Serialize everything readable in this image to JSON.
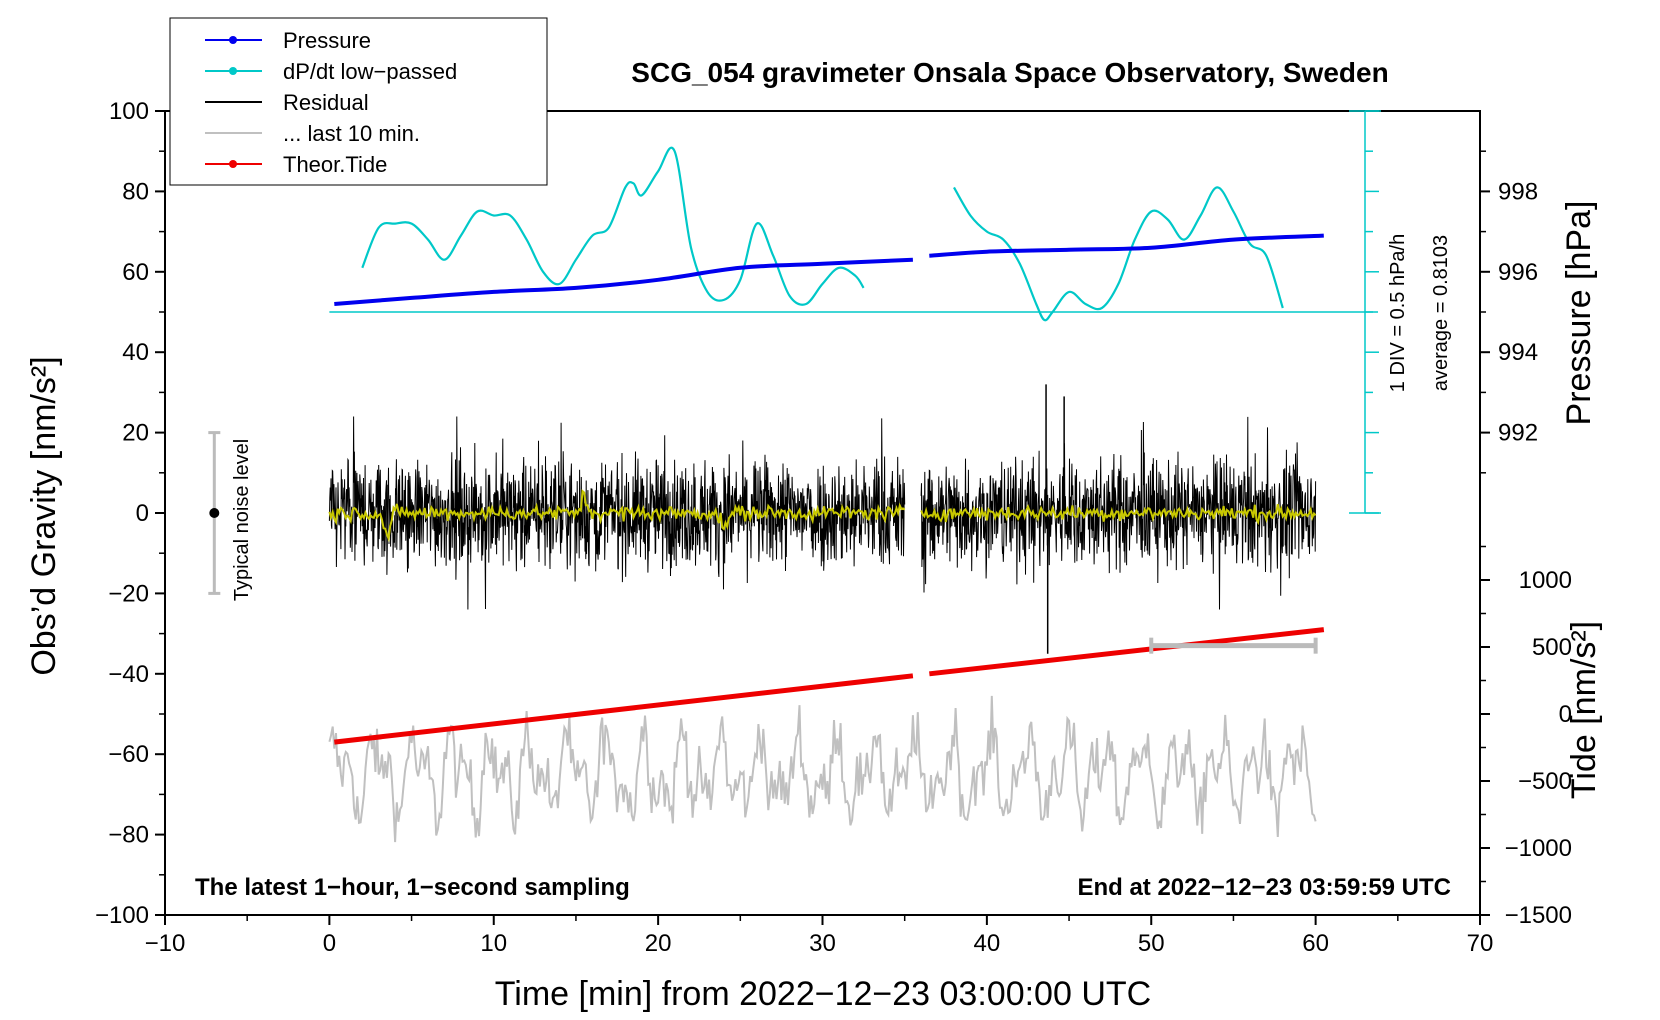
{
  "chart_data": {
    "type": "line",
    "title": "SCG_054 gravimeter Onsala Space Observatory, Sweden",
    "xlabel": "Time [min] from 2022−12−23 03:00:00 UTC",
    "ylabel_left": "Obs’d Gravity [nm/s²]",
    "ylabel_right_top": "Pressure [hPa]",
    "ylabel_right_bottom": "Tide [nm/s²]",
    "xlim": [
      -10,
      70
    ],
    "ylim": [
      -100,
      100
    ],
    "xticks": [
      -10,
      0,
      10,
      20,
      30,
      40,
      50,
      60,
      70
    ],
    "xtick_labels": [
      "−10",
      "0",
      "10",
      "20",
      "30",
      "40",
      "50",
      "60",
      "70"
    ],
    "yticks": [
      -100,
      -80,
      -60,
      -40,
      -20,
      0,
      20,
      40,
      60,
      80,
      100
    ],
    "ytick_labels": [
      "−100",
      "−80",
      "−60",
      "−40",
      "−20",
      "0",
      "20",
      "40",
      "60",
      "80",
      "100"
    ],
    "pressure_axis": {
      "ticks": [
        992,
        994,
        996,
        998
      ],
      "tick_labels": [
        "992",
        "994",
        "996",
        "998"
      ],
      "anchor": {
        "value": 995,
        "gravity": 50
      },
      "scale_gravity_per_hPa": 10
    },
    "tide_axis": {
      "ticks": [
        -1500,
        -1000,
        -500,
        0,
        500,
        1000
      ],
      "tick_labels": [
        "−1500",
        "−1000",
        "−500",
        "0",
        "500",
        "1000"
      ],
      "anchor": {
        "value": 0,
        "gravity": -50
      },
      "scale_gravity_per_unit": 0.0333333
    },
    "legend": {
      "position": "top-left",
      "entries": [
        {
          "label": "Pressure",
          "color": "#0000ee",
          "marker": true
        },
        {
          "label": "dP/dt low−passed",
          "color": "#00c8c8",
          "marker": true
        },
        {
          "label": "Residual",
          "color": "#000000",
          "marker": false
        },
        {
          "label": "... last 10 min.",
          "color": "#c0c0c0",
          "marker": false
        },
        {
          "label": "Theor.Tide",
          "color": "#ee0000",
          "marker": true
        }
      ]
    },
    "annotations": {
      "bottom_left": "The latest 1−hour, 1−second sampling",
      "bottom_right": "End at 2022−12−23 03:59:59 UTC",
      "noise_level": "Typical noise level",
      "noise_range": [
        -20,
        20
      ],
      "dpdt_scale": "1 DIV = 0.5 hPa/h",
      "dpdt_average": "average = 0.8103",
      "dpdt_baseline_gravity": 50,
      "last10_range_min": [
        50,
        60
      ],
      "last10_bar_gravity": -33
    },
    "series": [
      {
        "name": "Pressure",
        "units": "hPa",
        "color": "#0000ee",
        "segments": [
          {
            "x": [
              0.3,
              5,
              10,
              15,
              20,
              25,
              30,
              35.5
            ],
            "y": [
              995.2,
              995.35,
              995.5,
              995.6,
              995.8,
              996.1,
              996.2,
              996.3
            ]
          },
          {
            "x": [
              36.5,
              40,
              45,
              50,
              55,
              60.5
            ],
            "y": [
              996.4,
              996.5,
              996.55,
              996.6,
              996.8,
              996.9
            ]
          }
        ]
      },
      {
        "name": "dP/dt low−passed",
        "units": "nm/s² (plot units)",
        "color": "#00c8c8",
        "segments": [
          {
            "x": [
              2,
              3,
              4,
              5,
              6,
              7,
              8,
              9,
              10,
              11,
              12,
              13,
              14,
              15,
              16,
              17,
              18,
              18.5,
              19,
              20,
              21,
              22,
              23,
              24,
              25,
              26,
              27,
              28,
              29,
              30,
              31,
              32,
              32.5
            ],
            "y": [
              61,
              71,
              72,
              72,
              68,
              63,
              69,
              75,
              74,
              74,
              68,
              60,
              57,
              63,
              69,
              71,
              81,
              82,
              79,
              85,
              90,
              66,
              55,
              53,
              58,
              72,
              64,
              54,
              52,
              57,
              61,
              59,
              56
            ]
          },
          {
            "x": [
              38,
              39,
              40,
              41,
              42,
              43,
              43.5,
              44,
              45,
              46,
              47,
              48,
              49,
              50,
              51,
              52,
              53,
              54,
              55,
              56,
              57,
              58
            ],
            "y": [
              81,
              74,
              70,
              68,
              62,
              52,
              48,
              50,
              55,
              52,
              51,
              57,
              68,
              75,
              73,
              68,
              74,
              81,
              75,
              67,
              64,
              51
            ]
          }
        ]
      },
      {
        "name": "Residual",
        "units": "nm/s²",
        "color": "#000000",
        "segments": [
          {
            "x": [
              0,
              35
            ]
          },
          {
            "x": [
              36,
              60
            ]
          }
        ],
        "typical_amplitude": 12,
        "notable_values": [
          {
            "x": 43.6,
            "y": 32
          },
          {
            "x": 43.7,
            "y": -35
          },
          {
            "x": 44.7,
            "y": 29
          }
        ]
      },
      {
        "name": "Residual (smoothed)",
        "units": "nm/s²",
        "color": "#c8c800",
        "segments": [
          {
            "x": [
              0,
              35
            ]
          },
          {
            "x": [
              36,
              60
            ]
          }
        ],
        "notable_values": [
          {
            "x": 3.5,
            "y": -6
          },
          {
            "x": 15.5,
            "y": 4
          },
          {
            "x": 24,
            "y": -4
          }
        ]
      },
      {
        "name": "... last 10 min.",
        "units": "nm/s²",
        "color": "#c0c0c0",
        "x_range": [
          0,
          60
        ],
        "center": -65,
        "amplitude": 12
      },
      {
        "name": "Theor.Tide",
        "units": "nm/s²",
        "color": "#ee0000",
        "segments": [
          {
            "x": [
              0.3,
              35.5
            ],
            "y": [
              -210,
              285
            ]
          },
          {
            "x": [
              36.5,
              60.5
            ],
            "y": [
              300,
              630
            ]
          }
        ]
      }
    ]
  }
}
